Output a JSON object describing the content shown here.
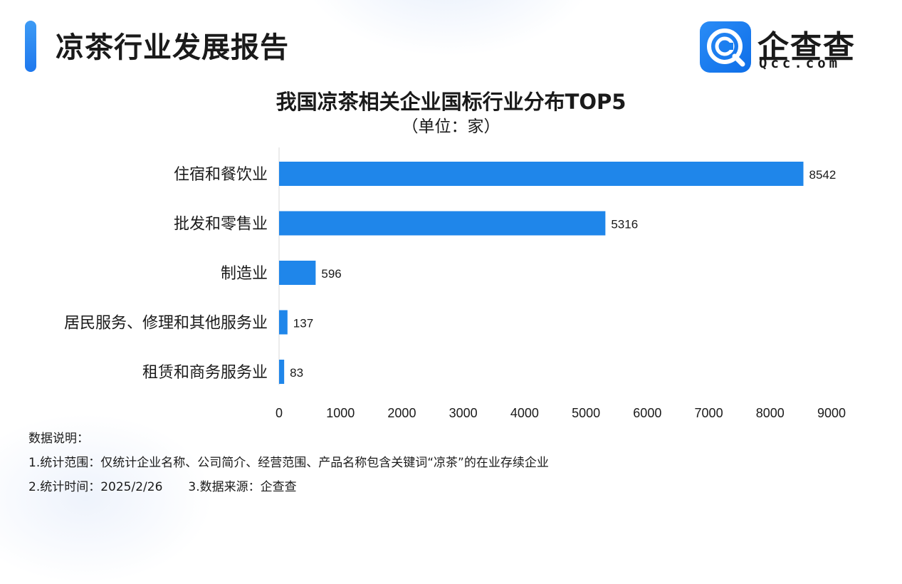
{
  "header": {
    "title": "凉茶行业发展报告",
    "logo_name": "企查查",
    "logo_domain": "Qcc.com"
  },
  "colors": {
    "accent": "#1f86ea",
    "bar": "#1f86ea"
  },
  "chart_data": {
    "type": "bar",
    "orientation": "horizontal",
    "title": "我国凉茶相关企业国标行业分布TOP5",
    "subtitle": "（单位：家）",
    "categories": [
      "住宿和餐饮业",
      "批发和零售业",
      "制造业",
      "居民服务、修理和其他服务业",
      "租赁和商务服务业"
    ],
    "values": [
      8542,
      5316,
      596,
      137,
      83
    ],
    "xlim": [
      0,
      9000
    ],
    "xticks": [
      0,
      1000,
      2000,
      3000,
      4000,
      5000,
      6000,
      7000,
      8000,
      9000
    ],
    "grid": false,
    "data_labels": true
  },
  "notes": {
    "heading": "数据说明：",
    "scope": "1.统计范围：仅统计企业名称、公司简介、经营范围、产品名称包含关键词“凉茶”的在业存续企业",
    "time": "2.统计时间：2025/2/26",
    "source": "3.数据来源：企查查"
  }
}
